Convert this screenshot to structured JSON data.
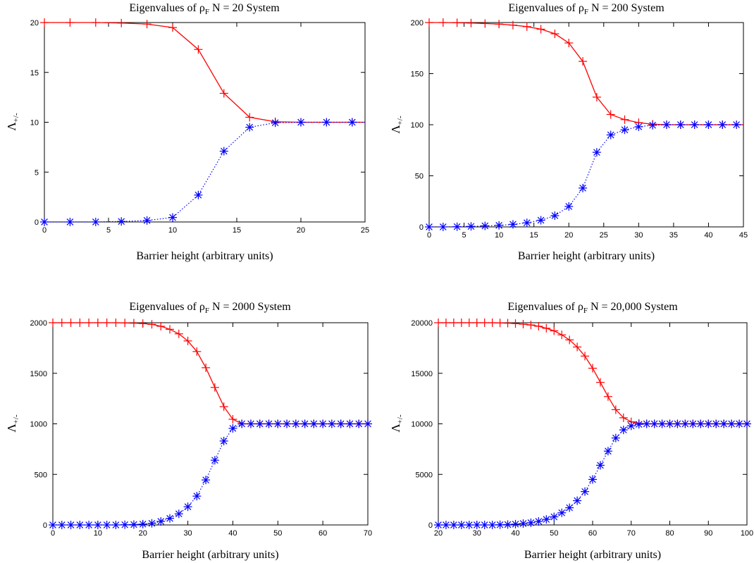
{
  "colors": {
    "series_plus": "#ff0000",
    "series_minus": "#0000ff",
    "axis": "#000000"
  },
  "chart_data": [
    {
      "type": "line",
      "title_main": "Eigenvalues of ρ",
      "title_sub": "F",
      "title_rest": " N = 20 System",
      "xlabel": "Barrier height (arbitrary units)",
      "ylabel_main": "Λ",
      "ylabel_sub": "+/-",
      "xlim": [
        0,
        25
      ],
      "ylim": [
        0,
        20
      ],
      "xticks": [
        0,
        5,
        10,
        15,
        20,
        25
      ],
      "yticks": [
        0,
        5,
        10,
        15,
        20
      ],
      "xtick_labels": [
        "0",
        "5",
        "10",
        "15",
        "20",
        "25"
      ],
      "ytick_labels": [
        "0",
        "5",
        "10",
        "15",
        "20"
      ],
      "x": [
        0,
        2,
        4,
        6,
        8,
        10,
        12,
        14,
        16,
        18,
        20,
        22,
        24
      ],
      "series": [
        {
          "marker": "plus",
          "line": "solid",
          "values": [
            20,
            20,
            20,
            19.95,
            19.85,
            19.5,
            17.3,
            12.9,
            10.5,
            10.05,
            10,
            10,
            10
          ]
        },
        {
          "marker": "star",
          "line": "dotted",
          "values": [
            0,
            0,
            0,
            0.05,
            0.15,
            0.45,
            2.7,
            7.1,
            9.5,
            9.95,
            10,
            10,
            10
          ]
        }
      ],
      "x_end": 25
    },
    {
      "type": "line",
      "title_main": "Eigenvalues of ρ",
      "title_sub": "F",
      "title_rest": " N = 200 System",
      "xlabel": "Barrier height (arbitrary units)",
      "ylabel_main": "Λ",
      "ylabel_sub": "+/-",
      "xlim": [
        0,
        45
      ],
      "ylim": [
        0,
        200
      ],
      "xticks": [
        0,
        5,
        10,
        15,
        20,
        25,
        30,
        35,
        40,
        45
      ],
      "yticks": [
        0,
        50,
        100,
        150,
        200
      ],
      "xtick_labels": [
        "0",
        "5",
        "10",
        "15",
        "20",
        "25",
        "30",
        "35",
        "40",
        "45"
      ],
      "ytick_labels": [
        "0",
        "50",
        "100",
        "150",
        "200"
      ],
      "x": [
        0,
        2,
        4,
        6,
        8,
        10,
        12,
        14,
        16,
        18,
        20,
        22,
        24,
        26,
        28,
        30,
        32,
        34,
        36,
        38,
        40,
        42,
        44
      ],
      "series": [
        {
          "marker": "plus",
          "line": "solid",
          "values": [
            200,
            200,
            199.8,
            199.5,
            199,
            198.5,
            197.5,
            196,
            193.5,
            189,
            180,
            162,
            127,
            110,
            105,
            102,
            100.5,
            100,
            100,
            100,
            100,
            100,
            100
          ]
        },
        {
          "marker": "star",
          "line": "dotted",
          "values": [
            0,
            0,
            0.2,
            0.5,
            1,
            1.5,
            2.5,
            4,
            6.5,
            11,
            20,
            38,
            73,
            90,
            95,
            98,
            99.5,
            100,
            100,
            100,
            100,
            100,
            100
          ]
        }
      ],
      "x_end": 45
    },
    {
      "type": "line",
      "title_main": "Eigenvalues of ρ",
      "title_sub": "F",
      "title_rest": " N = 2000 System",
      "xlabel": "Barrier height (arbitrary units)",
      "ylabel_main": "Λ",
      "ylabel_sub": "+/-",
      "xlim": [
        0,
        70
      ],
      "ylim": [
        0,
        2000
      ],
      "xticks": [
        0,
        10,
        20,
        30,
        40,
        50,
        60,
        70
      ],
      "yticks": [
        0,
        500,
        1000,
        1500,
        2000
      ],
      "xtick_labels": [
        "0",
        "10",
        "20",
        "30",
        "40",
        "50",
        "60",
        "70"
      ],
      "ytick_labels": [
        "0",
        "500",
        "1000",
        "1500",
        "2000"
      ],
      "x": [
        0,
        2,
        4,
        6,
        8,
        10,
        12,
        14,
        16,
        18,
        20,
        22,
        24,
        26,
        28,
        30,
        32,
        34,
        36,
        38,
        40,
        42,
        44,
        46,
        48,
        50,
        52,
        54,
        56,
        58,
        60,
        62,
        64,
        66,
        68,
        70
      ],
      "series": [
        {
          "marker": "plus",
          "line": "solid",
          "values": [
            2000,
            2000,
            2000,
            2000,
            2000,
            2000,
            2000,
            2000,
            1998,
            1996,
            1992,
            1984,
            1965,
            1935,
            1890,
            1820,
            1715,
            1555,
            1360,
            1170,
            1045,
            1000,
            1000,
            1000,
            1000,
            1000,
            1000,
            1000,
            1000,
            1000,
            1000,
            1000,
            1000,
            1000,
            1000,
            1000
          ]
        },
        {
          "marker": "star",
          "line": "dotted",
          "values": [
            0,
            0,
            0,
            0,
            0,
            0,
            0,
            0,
            2,
            4,
            8,
            16,
            35,
            65,
            110,
            180,
            285,
            445,
            640,
            830,
            955,
            1000,
            1000,
            1000,
            1000,
            1000,
            1000,
            1000,
            1000,
            1000,
            1000,
            1000,
            1000,
            1000,
            1000,
            1000
          ]
        }
      ],
      "x_end": 70
    },
    {
      "type": "line",
      "title_main": "Eigenvalues of ρ",
      "title_sub": "F",
      "title_rest": " N = 20,000 System",
      "xlabel": "Barrier height (arbitrary units)",
      "ylabel_main": "Λ",
      "ylabel_sub": "+/-",
      "xlim": [
        20,
        100
      ],
      "ylim": [
        0,
        20000
      ],
      "xticks": [
        20,
        30,
        40,
        50,
        60,
        70,
        80,
        90,
        100
      ],
      "yticks": [
        0,
        5000,
        10000,
        15000,
        20000
      ],
      "xtick_labels": [
        "20",
        "30",
        "40",
        "50",
        "60",
        "70",
        "80",
        "90",
        "100"
      ],
      "ytick_labels": [
        "0",
        "5000",
        "10000",
        "15000",
        "20000"
      ],
      "x": [
        20,
        22,
        24,
        26,
        28,
        30,
        32,
        34,
        36,
        38,
        40,
        42,
        44,
        46,
        48,
        50,
        52,
        54,
        56,
        58,
        60,
        62,
        64,
        66,
        68,
        70,
        72,
        74,
        76,
        78,
        80,
        82,
        84,
        86,
        88,
        90,
        92,
        94,
        96,
        98,
        100
      ],
      "series": [
        {
          "marker": "plus",
          "line": "solid",
          "values": [
            20000,
            20000,
            20000,
            20000,
            20000,
            20000,
            20000,
            20000,
            19980,
            19960,
            19920,
            19860,
            19780,
            19650,
            19450,
            19200,
            18800,
            18300,
            17600,
            16700,
            15500,
            14100,
            12700,
            11400,
            10600,
            10200,
            10050,
            10000,
            10000,
            10000,
            10000,
            10000,
            10000,
            10000,
            10000,
            10000,
            10000,
            10000,
            10000,
            10000,
            10000
          ]
        },
        {
          "marker": "star",
          "line": "dotted",
          "values": [
            0,
            0,
            0,
            0,
            0,
            0,
            0,
            0,
            20,
            40,
            80,
            140,
            220,
            350,
            550,
            800,
            1200,
            1700,
            2400,
            3300,
            4500,
            5900,
            7300,
            8600,
            9400,
            9800,
            9950,
            10000,
            10000,
            10000,
            10000,
            10000,
            10000,
            10000,
            10000,
            10000,
            10000,
            10000,
            10000,
            10000,
            10000
          ]
        }
      ],
      "x_end": 100
    }
  ]
}
